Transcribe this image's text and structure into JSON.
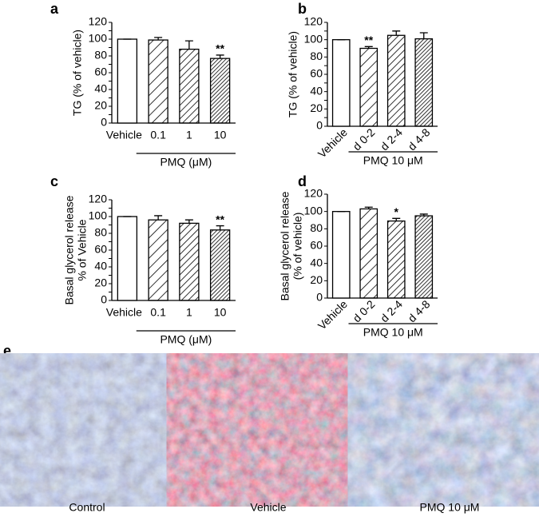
{
  "chart_data": [
    {
      "type": "bar",
      "panel": "a",
      "ylabel": [
        "TG (% of vehicle)"
      ],
      "xlabel": "PMQ (μM)",
      "categories": [
        "Vehicle",
        "0.1",
        "1",
        "10"
      ],
      "values": [
        100,
        99,
        88,
        77
      ],
      "errors": [
        0,
        3,
        10,
        4
      ],
      "significance": [
        null,
        null,
        null,
        "**"
      ],
      "ylim": [
        0,
        120
      ],
      "yticks": [
        0,
        10,
        20,
        30,
        40,
        50,
        60,
        70,
        80,
        90,
        100,
        110,
        120
      ],
      "xtick_rotation": 0
    },
    {
      "type": "bar",
      "panel": "b",
      "ylabel": [
        "TG (% of vehicle)"
      ],
      "xlabel": "PMQ 10 μM",
      "categories": [
        "Vehicle",
        "d 0-2",
        "d 2-4",
        "d 4-8"
      ],
      "values": [
        100,
        90,
        105,
        101
      ],
      "errors": [
        0,
        2,
        5,
        7
      ],
      "significance": [
        null,
        "**",
        null,
        null
      ],
      "ylim": [
        0,
        120
      ],
      "yticks": [
        0,
        10,
        20,
        30,
        40,
        50,
        60,
        70,
        80,
        90,
        100,
        110,
        120
      ],
      "xtick_rotation": 45
    },
    {
      "type": "bar",
      "panel": "c",
      "ylabel": [
        "Basal glycerol release",
        "% of Vehicle"
      ],
      "xlabel": "PMQ (μM)",
      "categories": [
        "Vehicle",
        "0.1",
        "1",
        "10"
      ],
      "values": [
        100,
        96,
        92,
        84
      ],
      "errors": [
        0,
        5,
        4,
        5
      ],
      "significance": [
        null,
        null,
        null,
        "**"
      ],
      "ylim": [
        0,
        120
      ],
      "yticks": [
        0,
        10,
        20,
        30,
        40,
        50,
        60,
        70,
        80,
        90,
        100,
        110,
        120
      ],
      "xtick_rotation": 0
    },
    {
      "type": "bar",
      "panel": "d",
      "ylabel": [
        "Basal glycerol release",
        "(% of vehicle)"
      ],
      "xlabel": "PMQ 10 μM",
      "categories": [
        "Vehicle",
        "d 0-2",
        "d 2-4",
        "d 4-8"
      ],
      "values": [
        100,
        103,
        89,
        95
      ],
      "errors": [
        0,
        2,
        3,
        2
      ],
      "significance": [
        null,
        null,
        "*",
        null
      ],
      "ylim": [
        0,
        120
      ],
      "yticks": [
        0,
        20,
        40,
        60,
        80,
        100,
        120
      ],
      "xtick_rotation": 45
    }
  ],
  "panel_e": {
    "label": "e",
    "captions": [
      "Control",
      "Vehicle",
      "PMQ 10 μM"
    ]
  }
}
